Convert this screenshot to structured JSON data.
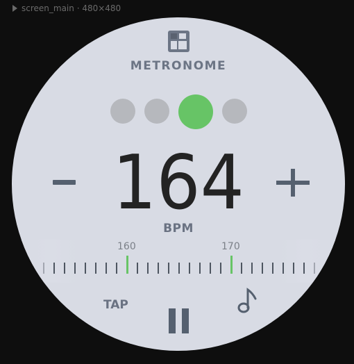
{
  "window": {
    "label": "screen_main · 480×480"
  },
  "app": {
    "title": "METRONOME",
    "icon": "metronome-app-icon"
  },
  "beats": {
    "count": 4,
    "active_index": 2,
    "active_color": "#67c466",
    "inactive_color": "#b6b8bd"
  },
  "tempo": {
    "bpm": "164",
    "unit": "BPM",
    "decrease_label": "-",
    "increase_label": "+"
  },
  "ruler": {
    "labels": [
      "160",
      "170"
    ],
    "accent_color": "#67c466"
  },
  "controls": {
    "tap_label": "TAP",
    "pause_icon": "pause-icon",
    "note_icon": "music-note-icon"
  }
}
